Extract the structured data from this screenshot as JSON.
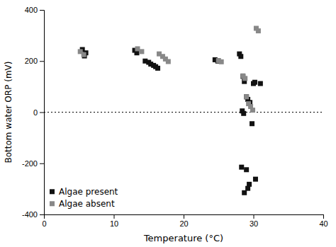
{
  "chart_data": {
    "type": "scatter",
    "xlabel": "Temperature (°C)",
    "ylabel": "Bottom water ORP (mV)",
    "xlim": [
      0,
      40
    ],
    "ylim": [
      -400,
      400
    ],
    "xticks": [
      0,
      10,
      20,
      30,
      40
    ],
    "yticks": [
      -400,
      -200,
      0,
      200,
      400
    ],
    "hline_y": 0,
    "legend": "lower left",
    "marker": "square",
    "series": [
      {
        "name": "Algae present",
        "color": "#111111",
        "x": [
          5.5,
          6.0,
          5.8,
          13.0,
          13.3,
          14.5,
          15.0,
          15.3,
          15.7,
          16.0,
          16.3,
          24.5,
          24.9,
          28.0,
          28.2,
          28.5,
          28.7,
          29.0,
          29.2,
          29.5,
          28.4,
          28.6,
          29.8,
          30.0,
          30.2,
          31.0,
          28.3,
          29.0,
          28.7,
          29.2,
          29.4,
          30.3
        ],
        "values": [
          245,
          232,
          220,
          242,
          232,
          200,
          195,
          188,
          183,
          178,
          172,
          205,
          200,
          228,
          218,
          140,
          120,
          60,
          50,
          38,
          5,
          -5,
          -45,
          112,
          117,
          112,
          -215,
          -225,
          -315,
          -298,
          -282,
          -262
        ]
      },
      {
        "name": "Algae absent",
        "color": "#888888",
        "x": [
          5.2,
          5.7,
          13.4,
          14.0,
          16.5,
          17.0,
          17.4,
          17.8,
          25.0,
          25.4,
          28.5,
          28.8,
          29.0,
          29.3,
          29.6,
          29.9,
          30.4,
          30.7
        ],
        "values": [
          237,
          225,
          248,
          237,
          228,
          218,
          208,
          198,
          202,
          197,
          142,
          132,
          60,
          33,
          22,
          8,
          328,
          318
        ]
      }
    ]
  }
}
